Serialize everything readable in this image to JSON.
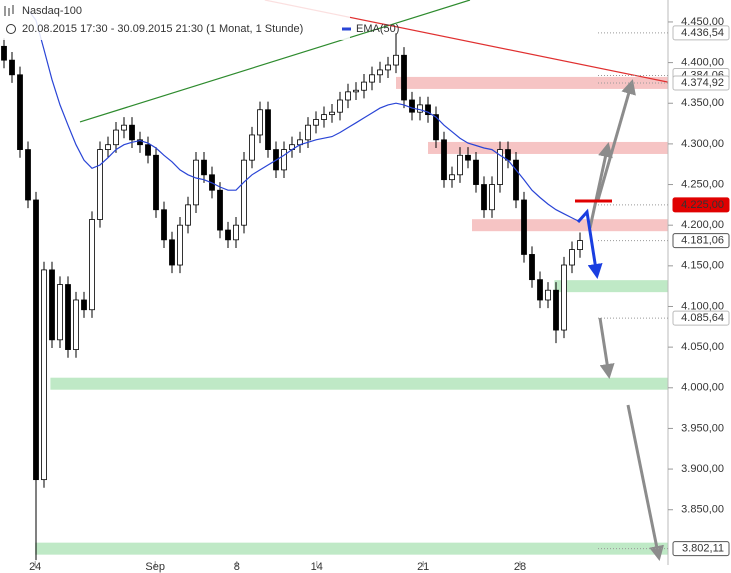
{
  "chart_data": {
    "type": "candlestick",
    "title": "Nasdaq-100",
    "subtitle": "20.08.2015 17:30 - 30.09.2015 21:30 (1 Monat, 1 Stunde)",
    "candles": {
      "up_color": "#ffffff",
      "down_color": "#000000",
      "open": [
        4420,
        4403,
        4385,
        4293,
        4231,
        3887,
        4145,
        4059,
        4127,
        4047,
        4108,
        4096,
        4207,
        4293,
        4299,
        4317,
        4323,
        4305,
        4299,
        4286,
        4219,
        4182,
        4151,
        4200,
        4225,
        4280,
        4262,
        4243,
        4194,
        4182,
        4200,
        4280,
        4311,
        4342,
        4293,
        4268,
        4293,
        4299,
        4305,
        4323,
        4330,
        4336,
        4339,
        4354,
        4364,
        4366,
        4376,
        4385,
        4391,
        4397,
        4409,
        4354,
        4339,
        4348,
        4336,
        4305,
        4256,
        4262,
        4286,
        4280,
        4250,
        4219,
        4250,
        4293,
        4280,
        4231,
        4164,
        4133,
        4108,
        4120,
        4071,
        4151,
        4170
      ],
      "high": [
        4430,
        4413,
        4395,
        4303,
        4241,
        4155,
        4155,
        4137,
        4137,
        4118,
        4118,
        4217,
        4303,
        4309,
        4327,
        4333,
        4333,
        4315,
        4309,
        4296,
        4229,
        4192,
        4210,
        4235,
        4290,
        4290,
        4272,
        4253,
        4204,
        4210,
        4290,
        4321,
        4352,
        4352,
        4303,
        4303,
        4309,
        4315,
        4333,
        4340,
        4346,
        4349,
        4364,
        4374,
        4376,
        4386,
        4395,
        4401,
        4407,
        4436,
        4419,
        4364,
        4358,
        4358,
        4346,
        4315,
        4272,
        4296,
        4296,
        4290,
        4260,
        4260,
        4303,
        4303,
        4290,
        4241,
        4174,
        4143,
        4130,
        4130,
        4161,
        4180,
        4191
      ],
      "low": [
        4393,
        4375,
        4283,
        4221,
        3788,
        3877,
        4049,
        4049,
        4037,
        4037,
        4086,
        4086,
        4197,
        4283,
        4289,
        4307,
        4295,
        4289,
        4276,
        4209,
        4172,
        4141,
        4141,
        4190,
        4215,
        4252,
        4233,
        4184,
        4172,
        4172,
        4190,
        4270,
        4301,
        4283,
        4258,
        4258,
        4283,
        4289,
        4295,
        4313,
        4320,
        4326,
        4329,
        4344,
        4354,
        4356,
        4366,
        4375,
        4381,
        4387,
        4344,
        4329,
        4329,
        4326,
        4295,
        4246,
        4246,
        4252,
        4270,
        4240,
        4209,
        4209,
        4240,
        4270,
        4221,
        4154,
        4123,
        4098,
        4098,
        4055,
        4061,
        4141,
        4160
      ],
      "close": [
        4403,
        4385,
        4293,
        4231,
        3887,
        4145,
        4059,
        4127,
        4047,
        4108,
        4096,
        4207,
        4293,
        4299,
        4317,
        4323,
        4305,
        4299,
        4286,
        4219,
        4182,
        4151,
        4200,
        4225,
        4280,
        4262,
        4243,
        4194,
        4182,
        4200,
        4280,
        4311,
        4342,
        4293,
        4268,
        4293,
        4299,
        4305,
        4323,
        4330,
        4336,
        4339,
        4354,
        4364,
        4366,
        4376,
        4385,
        4391,
        4397,
        4409,
        4354,
        4339,
        4348,
        4336,
        4305,
        4256,
        4262,
        4286,
        4280,
        4250,
        4219,
        4250,
        4293,
        4280,
        4231,
        4164,
        4133,
        4108,
        4120,
        4071,
        4151,
        4170,
        4181.06
      ]
    },
    "series": [
      {
        "name": "EMA(50)",
        "color": "#2a45d6",
        "values": [
          null,
          null,
          null,
          4465,
          4452,
          4416,
          4379,
          4348,
          4323,
          4299,
          4280,
          4270,
          4274,
          4283,
          4293,
          4299,
          4302,
          4304,
          4301,
          4295,
          4286,
          4278,
          4268,
          4262,
          4258,
          4256,
          4252,
          4247,
          4243,
          4243,
          4253,
          4262,
          4268,
          4274,
          4280,
          4286,
          4293,
          4299,
          4302,
          4305,
          4307,
          4309,
          4314,
          4320,
          4326,
          4332,
          4338,
          4344,
          4348,
          4350,
          4348,
          4344,
          4342,
          4339,
          4333,
          4323,
          4315,
          4307,
          4301,
          4298,
          4295,
          4293,
          4286,
          4280,
          4268,
          4256,
          4243,
          4234,
          4226,
          4219,
          4214,
          4209,
          4204
        ]
      }
    ],
    "zones": [
      {
        "value": 4375,
        "start": 49,
        "color": "#f6c4c4"
      },
      {
        "value": 4295,
        "start": 53,
        "color": "#f6c4c4"
      },
      {
        "value": 4200,
        "start": 58.5,
        "color": "#f6c4c4"
      },
      {
        "value": 4125,
        "start": 68.8,
        "color": "#bfe9c6"
      },
      {
        "value": 4005,
        "start": 5.8,
        "color": "#bfe9c6"
      },
      {
        "value": 3802.11,
        "start": 3.9,
        "color": "#bfe9c6"
      }
    ],
    "trendlines": [
      {
        "color": "#2e8b2e",
        "x": [
          9.5,
          58.25
        ],
        "y": [
          4327,
          4477
        ]
      },
      {
        "color": "#e03030",
        "x": [
          32.6,
          83
        ],
        "y": [
          4477,
          4376
        ]
      }
    ],
    "level_labels": [
      {
        "value": 4436.54,
        "label": "4.436,54",
        "style": "plain"
      },
      {
        "value": 4384.06,
        "label": "4.384,06",
        "style": "plain"
      },
      {
        "value": 4374.92,
        "label": "4.374,92",
        "style": "plain"
      },
      {
        "value": 4225,
        "label": "4.225,00",
        "style": "red"
      },
      {
        "value": 4181.06,
        "label": "4.181,06",
        "style": "dark"
      },
      {
        "value": 4085.64,
        "label": "4.085,64",
        "style": "plain"
      },
      {
        "value": 3802.11,
        "label": "3.802,11",
        "style": "dark"
      }
    ],
    "xlim": [
      -0.5,
      83
    ],
    "xticks": [
      {
        "value": 3.9,
        "label": "24"
      },
      {
        "value": 18.9,
        "label": "Sep"
      },
      {
        "value": 29.1,
        "label": "8"
      },
      {
        "value": 39.1,
        "label": "14"
      },
      {
        "value": 52.4,
        "label": "21"
      },
      {
        "value": 64.5,
        "label": "28"
      }
    ],
    "ylim": [
      3782,
      4477
    ],
    "yticks": [
      {
        "value": 3850,
        "label": "3.850,00"
      },
      {
        "value": 3900,
        "label": "3.900,00"
      },
      {
        "value": 3950,
        "label": "3.950,00"
      },
      {
        "value": 4000,
        "label": "4.000,00"
      },
      {
        "value": 4050,
        "label": "4.050,00"
      },
      {
        "value": 4100,
        "label": "4.100,00"
      },
      {
        "value": 4150,
        "label": "4.150,00"
      },
      {
        "value": 4200,
        "label": "4.200,00"
      },
      {
        "value": 4250,
        "label": "4.250,00"
      },
      {
        "value": 4300,
        "label": "4.300,00"
      },
      {
        "value": 4350,
        "label": "4.350,00"
      },
      {
        "value": 4400,
        "label": "4.400,00"
      },
      {
        "value": 4450,
        "label": "4.450,00"
      }
    ]
  }
}
